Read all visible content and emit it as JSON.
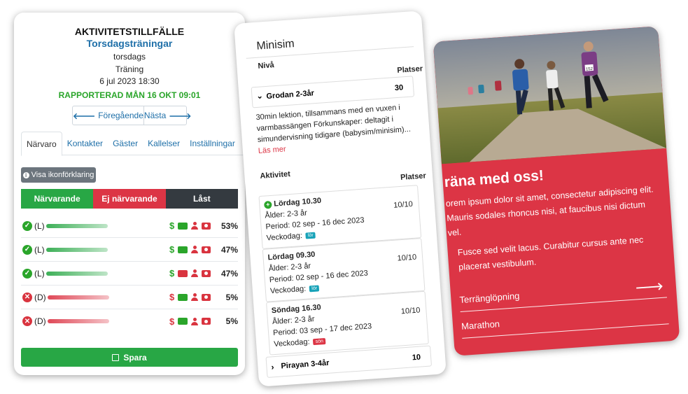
{
  "attendance": {
    "title": "AKTIVITETSTILLFÄLLE",
    "subtitle": "Torsdagsträningar",
    "weekday": "torsdags",
    "type": "Träning",
    "datetime": "6 jul 2023 18:30",
    "reported": "RAPPORTERAD MÅN 16 OKT 09:01",
    "nav_prev": "Föregående",
    "nav_next": "Nästa",
    "tabs": [
      "Närvaro",
      "Kontakter",
      "Gäster",
      "Kallelser",
      "Inställningar"
    ],
    "legend_button": "Visa ikonförklaring",
    "segments": [
      "Närvarande",
      "Ej närvarande",
      "Låst"
    ],
    "rows": [
      {
        "status": "present",
        "code": "(L)",
        "percent": "53%"
      },
      {
        "status": "present",
        "code": "(L)",
        "percent": "47%"
      },
      {
        "status": "present",
        "code": "(L)",
        "percent": "47%"
      },
      {
        "status": "absent",
        "code": "(D)",
        "percent": "5%"
      },
      {
        "status": "absent",
        "code": "(D)",
        "percent": "5%"
      }
    ],
    "dollar_symbol": "$",
    "save_label": "Spara",
    "colors": {
      "green": "#28a745",
      "red": "#dc3545",
      "dark": "#343a40",
      "link": "#1e6fa8"
    }
  },
  "minisim": {
    "title": "Minisim",
    "level_label": "Nivå",
    "places_label": "Platser",
    "group1": {
      "name": "Grodan 2-3år",
      "places": "30"
    },
    "description": "30min lektion, tillsammans med en vuxen i varmbassängen Förkunskaper: deltagit i simundervisning tidigare (babysim/minisim)...",
    "read_more": "Läs mer",
    "activity_label": "Aktivitet",
    "sessions": [
      {
        "name": "Lördag 10.30",
        "age": "Ålder: 2-3 år",
        "period": "Period: 02 sep - 16 dec 2023",
        "weekday": "Veckodag:",
        "badge": "lör",
        "count": "10/10"
      },
      {
        "name": "Lördag 09.30",
        "age": "Ålder: 2-3 år",
        "period": "Period: 02 sep - 16 dec 2023",
        "weekday": "Veckodag:",
        "badge": "lör",
        "count": "10/10"
      },
      {
        "name": "Söndag 16.30",
        "age": "Ålder: 2-3 år",
        "period": "Period: 03 sep - 17 dec 2023",
        "weekday": "Veckodag:",
        "badge": "sön",
        "count": "10/10"
      }
    ],
    "group2": {
      "name": "Pirayan 3-4år",
      "places": "10"
    }
  },
  "promo": {
    "heading": "räna med oss!",
    "para1": "orem ipsum dolor sit amet, consectetur adipiscing elit. Mauris sodales rhoncus nisi, at faucibus nisi dictum vel.",
    "para2": "Fusce sed velit lacus. Curabitur cursus ante nec placerat vestibulum.",
    "links": [
      "Terränglöpning",
      "Marathon"
    ],
    "bib_numbers": [
      "152"
    ],
    "color": "#dc3545"
  }
}
